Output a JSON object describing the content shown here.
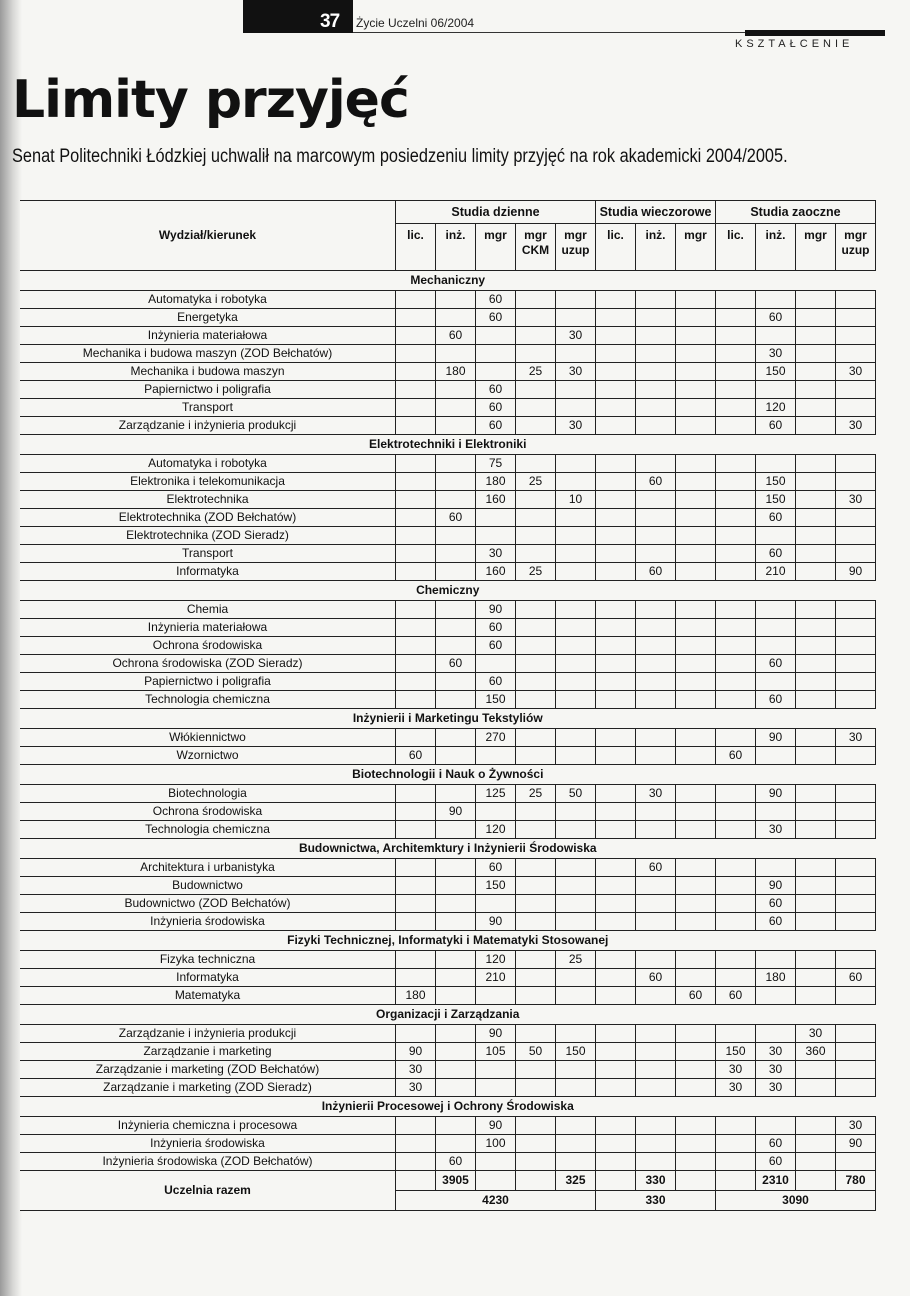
{
  "header": {
    "page_number": "37",
    "magazine": "Życie Uczelni 06/2004",
    "section": "KSZTAŁCENIE"
  },
  "article": {
    "title": "Limity przyjęć",
    "lead": "Senat Politechniki Łódzkiej uchwalił na marcowym posiedzeniu limity przyjęć na rok akademicki 2004/2005."
  },
  "table": {
    "name_header": "Wydział/kierunek",
    "groups": [
      {
        "label": "Studia dzienne",
        "span": 5
      },
      {
        "label": "Studia wieczorowe",
        "span": 3
      },
      {
        "label": "Studia zaoczne",
        "span": 4
      }
    ],
    "columns": [
      "lic.",
      "inż.",
      "mgr",
      "mgr CKM",
      "mgr uzup",
      "lic.",
      "inż.",
      "mgr",
      "lic.",
      "inż.",
      "mgr",
      "mgr uzup"
    ],
    "sections": [
      {
        "title": "Mechaniczny",
        "rows": [
          {
            "name": "Automatyka i robotyka",
            "cells": [
              "",
              "",
              "60",
              "",
              "",
              "",
              "",
              "",
              "",
              "",
              "",
              ""
            ]
          },
          {
            "name": "Energetyka",
            "cells": [
              "",
              "",
              "60",
              "",
              "",
              "",
              "",
              "",
              "",
              "60",
              "",
              ""
            ]
          },
          {
            "name": "Inżynieria materiałowa",
            "cells": [
              "",
              "60",
              "",
              "",
              "30",
              "",
              "",
              "",
              "",
              "",
              "",
              ""
            ]
          },
          {
            "name": "Mechanika i budowa maszyn (ZOD Bełchatów)",
            "cells": [
              "",
              "",
              "",
              "",
              "",
              "",
              "",
              "",
              "",
              "30",
              "",
              ""
            ]
          },
          {
            "name": "Mechanika i budowa maszyn",
            "cells": [
              "",
              "180",
              "",
              "25",
              "30",
              "",
              "",
              "",
              "",
              "150",
              "",
              "30"
            ]
          },
          {
            "name": "Papiernictwo i poligrafia",
            "cells": [
              "",
              "",
              "60",
              "",
              "",
              "",
              "",
              "",
              "",
              "",
              "",
              ""
            ]
          },
          {
            "name": "Transport",
            "cells": [
              "",
              "",
              "60",
              "",
              "",
              "",
              "",
              "",
              "",
              "120",
              "",
              ""
            ]
          },
          {
            "name": "Zarządzanie i inżynieria produkcji",
            "cells": [
              "",
              "",
              "60",
              "",
              "30",
              "",
              "",
              "",
              "",
              "60",
              "",
              "30"
            ]
          }
        ]
      },
      {
        "title": "Elektrotechniki i Elektroniki",
        "rows": [
          {
            "name": "Automatyka i robotyka",
            "cells": [
              "",
              "",
              "75",
              "",
              "",
              "",
              "",
              "",
              "",
              "",
              "",
              ""
            ]
          },
          {
            "name": "Elektronika i telekomunikacja",
            "cells": [
              "",
              "",
              "180",
              "25",
              "",
              "",
              "60",
              "",
              "",
              "150",
              "",
              ""
            ]
          },
          {
            "name": "Elektrotechnika",
            "cells": [
              "",
              "",
              "160",
              "",
              "10",
              "",
              "",
              "",
              "",
              "150",
              "",
              "30"
            ]
          },
          {
            "name": "Elektrotechnika (ZOD Bełchatów)",
            "cells": [
              "",
              "60",
              "",
              "",
              "",
              "",
              "",
              "",
              "",
              "60",
              "",
              ""
            ]
          },
          {
            "name": "Elektrotechnika (ZOD Sieradz)",
            "cells": [
              "",
              "",
              "",
              "",
              "",
              "",
              "",
              "",
              "",
              "",
              "",
              ""
            ]
          },
          {
            "name": "Transport",
            "cells": [
              "",
              "",
              "30",
              "",
              "",
              "",
              "",
              "",
              "",
              "60",
              "",
              ""
            ]
          },
          {
            "name": "Informatyka",
            "cells": [
              "",
              "",
              "160",
              "25",
              "",
              "",
              "60",
              "",
              "",
              "210",
              "",
              "90"
            ]
          }
        ]
      },
      {
        "title": "Chemiczny",
        "rows": [
          {
            "name": "Chemia",
            "cells": [
              "",
              "",
              "90",
              "",
              "",
              "",
              "",
              "",
              "",
              "",
              "",
              ""
            ]
          },
          {
            "name": "Inżynieria materiałowa",
            "cells": [
              "",
              "",
              "60",
              "",
              "",
              "",
              "",
              "",
              "",
              "",
              "",
              ""
            ]
          },
          {
            "name": "Ochrona środowiska",
            "cells": [
              "",
              "",
              "60",
              "",
              "",
              "",
              "",
              "",
              "",
              "",
              "",
              ""
            ]
          },
          {
            "name": "Ochrona środowiska (ZOD Sieradz)",
            "cells": [
              "",
              "60",
              "",
              "",
              "",
              "",
              "",
              "",
              "",
              "60",
              "",
              ""
            ]
          },
          {
            "name": "Papiernictwo i poligrafia",
            "cells": [
              "",
              "",
              "60",
              "",
              "",
              "",
              "",
              "",
              "",
              "",
              "",
              ""
            ]
          },
          {
            "name": "Technologia chemiczna",
            "cells": [
              "",
              "",
              "150",
              "",
              "",
              "",
              "",
              "",
              "",
              "60",
              "",
              ""
            ]
          }
        ]
      },
      {
        "title": "Inżynierii i Marketingu Tekstyliów",
        "rows": [
          {
            "name": "Włókiennictwo",
            "cells": [
              "",
              "",
              "270",
              "",
              "",
              "",
              "",
              "",
              "",
              "90",
              "",
              "30"
            ]
          },
          {
            "name": "Wzornictwo",
            "cells": [
              "60",
              "",
              "",
              "",
              "",
              "",
              "",
              "",
              "60",
              "",
              "",
              ""
            ]
          }
        ]
      },
      {
        "title": "Biotechnologii i Nauk o Żywności",
        "rows": [
          {
            "name": "Biotechnologia",
            "cells": [
              "",
              "",
              "125",
              "25",
              "50",
              "",
              "30",
              "",
              "",
              "90",
              "",
              ""
            ]
          },
          {
            "name": "Ochrona środowiska",
            "cells": [
              "",
              "90",
              "",
              "",
              "",
              "",
              "",
              "",
              "",
              "",
              "",
              ""
            ]
          },
          {
            "name": "Technologia chemiczna",
            "cells": [
              "",
              "",
              "120",
              "",
              "",
              "",
              "",
              "",
              "",
              "30",
              "",
              ""
            ]
          }
        ]
      },
      {
        "title": "Budownictwa, Architemktury i Inżynierii Środowiska",
        "rows": [
          {
            "name": "Architektura i urbanistyka",
            "cells": [
              "",
              "",
              "60",
              "",
              "",
              "",
              "60",
              "",
              "",
              "",
              "",
              ""
            ]
          },
          {
            "name": "Budownictwo",
            "cells": [
              "",
              "",
              "150",
              "",
              "",
              "",
              "",
              "",
              "",
              "90",
              "",
              ""
            ]
          },
          {
            "name": "Budownictwo (ZOD Bełchatów)",
            "cells": [
              "",
              "",
              "",
              "",
              "",
              "",
              "",
              "",
              "",
              "60",
              "",
              ""
            ]
          },
          {
            "name": "Inżynieria środowiska",
            "cells": [
              "",
              "",
              "90",
              "",
              "",
              "",
              "",
              "",
              "",
              "60",
              "",
              ""
            ]
          }
        ]
      },
      {
        "title": "Fizyki Technicznej, Informatyki i Matematyki Stosowanej",
        "rows": [
          {
            "name": "Fizyka techniczna",
            "cells": [
              "",
              "",
              "120",
              "",
              "25",
              "",
              "",
              "",
              "",
              "",
              "",
              ""
            ]
          },
          {
            "name": "Informatyka",
            "cells": [
              "",
              "",
              "210",
              "",
              "",
              "",
              "60",
              "",
              "",
              "180",
              "",
              "60"
            ]
          },
          {
            "name": "Matematyka",
            "cells": [
              "180",
              "",
              "",
              "",
              "",
              "",
              "",
              "60",
              "60",
              "",
              "",
              ""
            ]
          }
        ]
      },
      {
        "title": "Organizacji i Zarządzania",
        "rows": [
          {
            "name": "Zarządzanie i inżynieria produkcji",
            "cells": [
              "",
              "",
              "90",
              "",
              "",
              "",
              "",
              "",
              "",
              "",
              "30",
              ""
            ]
          },
          {
            "name": "Zarządzanie i marketing",
            "cells": [
              "90",
              "",
              "105",
              "50",
              "150",
              "",
              "",
              "",
              "150",
              "30",
              "360",
              ""
            ]
          },
          {
            "name": "Zarządzanie i marketing (ZOD Bełchatów)",
            "cells": [
              "30",
              "",
              "",
              "",
              "",
              "",
              "",
              "",
              "30",
              "30",
              "",
              ""
            ]
          },
          {
            "name": "Zarządzanie i marketing (ZOD Sieradz)",
            "cells": [
              "30",
              "",
              "",
              "",
              "",
              "",
              "",
              "",
              "30",
              "30",
              "",
              ""
            ]
          }
        ]
      },
      {
        "title": "Inżynierii Procesowej i Ochrony Środowiska",
        "rows": [
          {
            "name": "Inżynieria chemiczna i procesowa",
            "cells": [
              "",
              "",
              "90",
              "",
              "",
              "",
              "",
              "",
              "",
              "",
              "",
              "30"
            ]
          },
          {
            "name": "Inżynieria środowiska",
            "cells": [
              "",
              "",
              "100",
              "",
              "",
              "",
              "",
              "",
              "",
              "60",
              "",
              "90"
            ]
          },
          {
            "name": "Inżynieria środowiska (ZOD Bełchatów)",
            "cells": [
              "",
              "60",
              "",
              "",
              "",
              "",
              "",
              "",
              "",
              "60",
              "",
              ""
            ]
          }
        ]
      }
    ],
    "total": {
      "label": "Uczelnia razem",
      "cells": [
        "",
        "3905",
        "",
        "",
        "325",
        "",
        "330",
        "",
        "",
        "2310",
        "",
        "780"
      ],
      "group_totals": [
        "4230",
        "330",
        "3090"
      ]
    }
  }
}
